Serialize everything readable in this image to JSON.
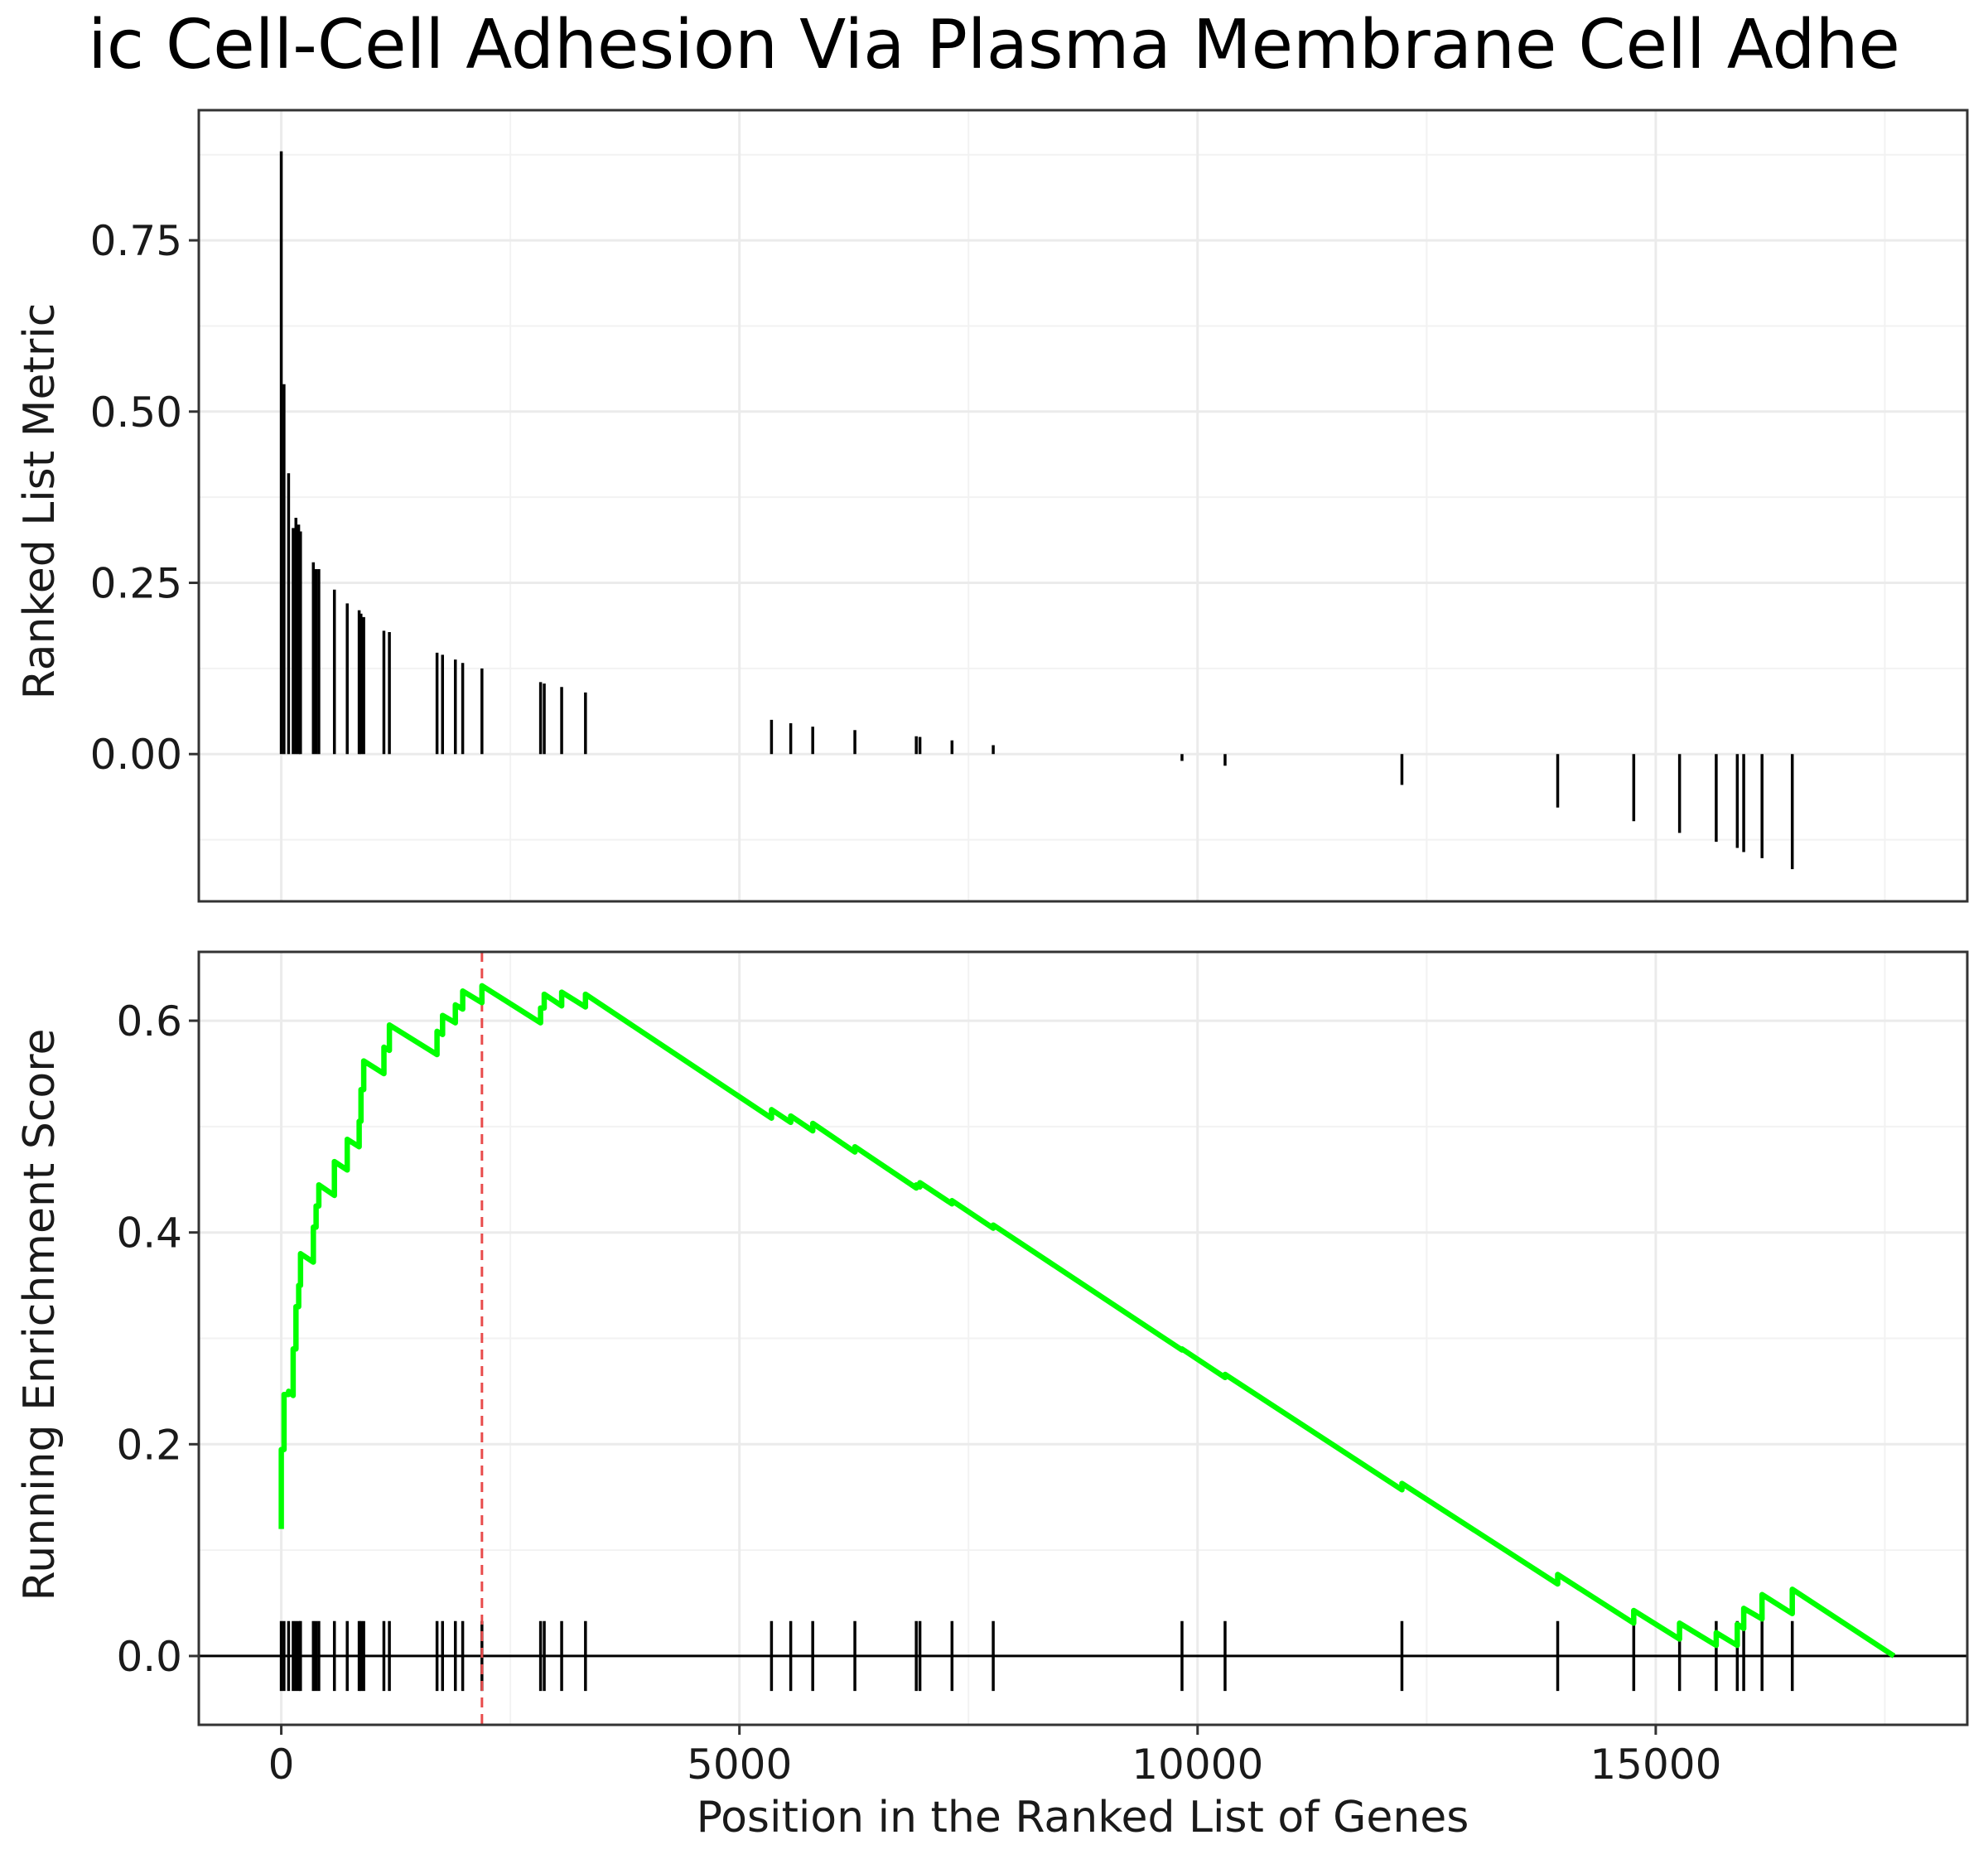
{
  "chart_data": {
    "type": "line",
    "title": "ic Cell-Cell Adhesion Via Plasma Membrane Cell Adhe",
    "xlabel": "Position in the Ranked List of Genes",
    "x_ticks": [
      0,
      5000,
      10000,
      15000
    ],
    "xlim": [
      -900,
      18400
    ],
    "hit_positions": [
      0,
      30,
      80,
      130,
      160,
      190,
      210,
      350,
      380,
      410,
      580,
      720,
      850,
      870,
      900,
      1120,
      1180,
      1700,
      1760,
      1900,
      1980,
      2190,
      2830,
      2870,
      3060,
      3320,
      5350,
      5560,
      5800,
      6260,
      6930,
      6970,
      7320,
      7770,
      9830,
      10300,
      12230,
      13930,
      14760,
      15260,
      15660,
      15890,
      15960,
      16160,
      16490
    ],
    "peak_position": 2190,
    "panels": [
      {
        "name": "ranked-metric",
        "type": "bar",
        "ylabel": "Ranked List Metric",
        "ylim": [
          -0.215,
          0.94
        ],
        "y_ticks": [
          "0.00",
          "0.25",
          "0.50",
          "0.75"
        ],
        "points": [
          {
            "x": 0,
            "y": 0.88
          },
          {
            "x": 30,
            "y": 0.54
          },
          {
            "x": 80,
            "y": 0.41
          },
          {
            "x": 130,
            "y": 0.33
          },
          {
            "x": 160,
            "y": 0.345
          },
          {
            "x": 190,
            "y": 0.335
          },
          {
            "x": 210,
            "y": 0.325
          },
          {
            "x": 350,
            "y": 0.28
          },
          {
            "x": 380,
            "y": 0.27
          },
          {
            "x": 410,
            "y": 0.27
          },
          {
            "x": 580,
            "y": 0.24
          },
          {
            "x": 720,
            "y": 0.22
          },
          {
            "x": 850,
            "y": 0.21
          },
          {
            "x": 870,
            "y": 0.205
          },
          {
            "x": 900,
            "y": 0.2
          },
          {
            "x": 1120,
            "y": 0.18
          },
          {
            "x": 1180,
            "y": 0.178
          },
          {
            "x": 1700,
            "y": 0.148
          },
          {
            "x": 1760,
            "y": 0.145
          },
          {
            "x": 1900,
            "y": 0.138
          },
          {
            "x": 1980,
            "y": 0.133
          },
          {
            "x": 2190,
            "y": 0.125
          },
          {
            "x": 2830,
            "y": 0.105
          },
          {
            "x": 2870,
            "y": 0.103
          },
          {
            "x": 3060,
            "y": 0.098
          },
          {
            "x": 3320,
            "y": 0.09
          },
          {
            "x": 5350,
            "y": 0.05
          },
          {
            "x": 5560,
            "y": 0.045
          },
          {
            "x": 5800,
            "y": 0.04
          },
          {
            "x": 6260,
            "y": 0.035
          },
          {
            "x": 6930,
            "y": 0.026
          },
          {
            "x": 6970,
            "y": 0.025
          },
          {
            "x": 7320,
            "y": 0.02
          },
          {
            "x": 7770,
            "y": 0.013
          },
          {
            "x": 9830,
            "y": -0.01
          },
          {
            "x": 10300,
            "y": -0.017
          },
          {
            "x": 12230,
            "y": -0.045
          },
          {
            "x": 13930,
            "y": -0.078
          },
          {
            "x": 14760,
            "y": -0.098
          },
          {
            "x": 15260,
            "y": -0.115
          },
          {
            "x": 15660,
            "y": -0.128
          },
          {
            "x": 15890,
            "y": -0.137
          },
          {
            "x": 15960,
            "y": -0.143
          },
          {
            "x": 16160,
            "y": -0.152
          },
          {
            "x": 16490,
            "y": -0.168
          }
        ]
      },
      {
        "name": "running-enrichment",
        "type": "line",
        "ylabel": "Running Enrichment Score",
        "ylim": [
          -0.065,
          0.665
        ],
        "y_ticks": [
          "0.0",
          "0.2",
          "0.4",
          "0.6"
        ],
        "series": [
          {
            "color": "#00ff00",
            "points": [
              [
                0,
                0.12
              ],
              [
                0,
                0.195
              ],
              [
                30,
                0.195
              ],
              [
                30,
                0.247
              ],
              [
                80,
                0.247
              ],
              [
                80,
                0.25
              ],
              [
                130,
                0.246
              ],
              [
                130,
                0.29
              ],
              [
                160,
                0.29
              ],
              [
                160,
                0.33
              ],
              [
                190,
                0.33
              ],
              [
                190,
                0.35
              ],
              [
                210,
                0.35
              ],
              [
                210,
                0.38
              ],
              [
                350,
                0.372
              ],
              [
                350,
                0.405
              ],
              [
                380,
                0.405
              ],
              [
                380,
                0.425
              ],
              [
                410,
                0.425
              ],
              [
                410,
                0.445
              ],
              [
                580,
                0.435
              ],
              [
                580,
                0.467
              ],
              [
                720,
                0.459
              ],
              [
                720,
                0.488
              ],
              [
                850,
                0.481
              ],
              [
                850,
                0.505
              ],
              [
                870,
                0.505
              ],
              [
                870,
                0.535
              ],
              [
                900,
                0.535
              ],
              [
                900,
                0.562
              ],
              [
                1120,
                0.55
              ],
              [
                1120,
                0.575
              ],
              [
                1180,
                0.572
              ],
              [
                1180,
                0.596
              ],
              [
                1700,
                0.568
              ],
              [
                1700,
                0.59
              ],
              [
                1760,
                0.587
              ],
              [
                1760,
                0.605
              ],
              [
                1900,
                0.598
              ],
              [
                1900,
                0.615
              ],
              [
                1980,
                0.611
              ],
              [
                1980,
                0.628
              ],
              [
                2190,
                0.617
              ],
              [
                2190,
                0.633
              ],
              [
                2830,
                0.598
              ],
              [
                2830,
                0.612
              ],
              [
                2870,
                0.612
              ],
              [
                2870,
                0.625
              ],
              [
                3060,
                0.614
              ],
              [
                3060,
                0.627
              ],
              [
                3320,
                0.613
              ],
              [
                3320,
                0.625
              ],
              [
                5350,
                0.508
              ],
              [
                5350,
                0.516
              ],
              [
                5560,
                0.504
              ],
              [
                5560,
                0.51
              ],
              [
                5800,
                0.496
              ],
              [
                5800,
                0.503
              ],
              [
                6260,
                0.476
              ],
              [
                6260,
                0.481
              ],
              [
                6930,
                0.442
              ],
              [
                6930,
                0.445
              ],
              [
                6970,
                0.443
              ],
              [
                6970,
                0.447
              ],
              [
                7320,
                0.427
              ],
              [
                7320,
                0.43
              ],
              [
                7770,
                0.404
              ],
              [
                7770,
                0.407
              ],
              [
                9830,
                0.289
              ],
              [
                9830,
                0.29
              ],
              [
                10300,
                0.263
              ],
              [
                10300,
                0.266
              ],
              [
                12230,
                0.157
              ],
              [
                12230,
                0.163
              ],
              [
                13930,
                0.068
              ],
              [
                13930,
                0.077
              ],
              [
                14760,
                0.031
              ],
              [
                14760,
                0.043
              ],
              [
                15260,
                0.016
              ],
              [
                15260,
                0.031
              ],
              [
                15660,
                0.01
              ],
              [
                15660,
                0.022
              ],
              [
                15890,
                0.01
              ],
              [
                15890,
                0.03
              ],
              [
                15960,
                0.026
              ],
              [
                15960,
                0.045
              ],
              [
                16160,
                0.035
              ],
              [
                16160,
                0.058
              ],
              [
                16490,
                0.04
              ],
              [
                16490,
                0.063
              ],
              [
                17600,
                0.0
              ]
            ]
          }
        ]
      }
    ]
  }
}
